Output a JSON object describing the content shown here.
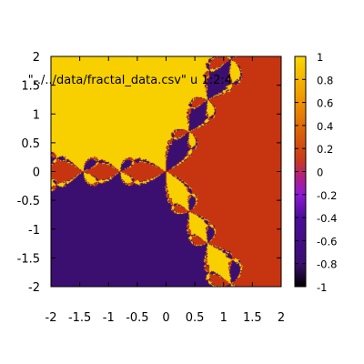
{
  "chart_data": {
    "type": "heatmap",
    "plot_label": "\"../../data/fractal_data.csv\" u 1:2:4",
    "x_ticks": [
      "-2",
      "-1.5",
      "-1",
      "-0.5",
      "0",
      "0.5",
      "1",
      "1.5",
      "2"
    ],
    "y_ticks": [
      "2",
      "1.5",
      "1",
      "0.5",
      "0",
      "-0.5",
      "-1",
      "-1.5",
      "-2"
    ],
    "xlim": [
      -2,
      2
    ],
    "ylim": [
      -2,
      2
    ],
    "colorbar": {
      "range": [
        -1,
        1
      ],
      "ticks": [
        "1",
        "0.8",
        "0.6",
        "0.4",
        "0.2",
        "0",
        "-0.2",
        "-0.4",
        "-0.6",
        "-0.8",
        "-1"
      ]
    },
    "levels": [
      -0.8,
      0.2,
      1.0
    ],
    "colors": {
      "-1": "#000000",
      "-0.8": "#3b0f70",
      "-0.2": "#8c1ad4",
      "0": "#c93b73",
      "0.2": "#c73510",
      "0.8": "#f7b800",
      "1": "#f8d800"
    }
  }
}
